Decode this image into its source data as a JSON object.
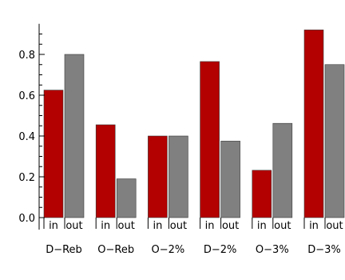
{
  "chart_data": {
    "type": "bar",
    "categories": [
      "D−Reb",
      "O−Reb",
      "O−2%",
      "D−2%",
      "O−3%",
      "D−3%"
    ],
    "bar_labels": [
      "in",
      "out"
    ],
    "series": [
      {
        "name": "in",
        "color": "#b30000",
        "values": [
          0.625,
          0.455,
          0.4,
          0.765,
          0.232,
          0.92
        ]
      },
      {
        "name": "out",
        "color": "#808080",
        "values": [
          0.8,
          0.19,
          0.4,
          0.375,
          0.462,
          0.75
        ]
      }
    ],
    "ylim": [
      0,
      0.95
    ],
    "yticks": [
      "0.0",
      "0.2",
      "0.4",
      "0.6",
      "0.8"
    ],
    "title": "",
    "xlabel": "",
    "ylabel": ""
  }
}
